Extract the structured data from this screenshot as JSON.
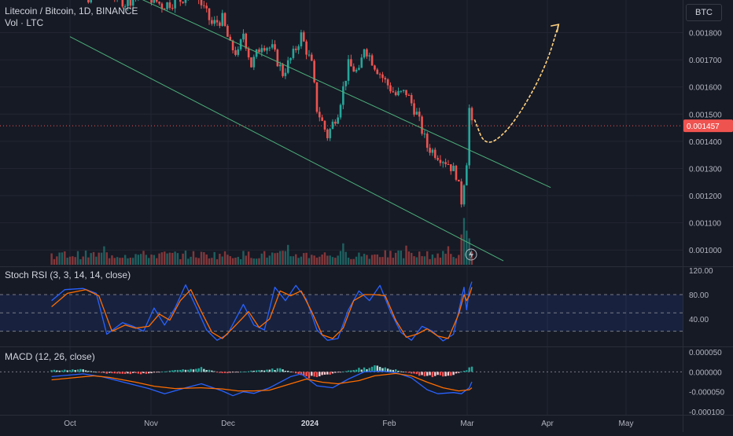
{
  "header": {
    "title": "Litecoin / Bitcoin, 1D, BINANCE",
    "volume_label": "Vol · LTC",
    "symbol_badge": "BTC"
  },
  "colors": {
    "background": "#161a25",
    "grid": "#232632",
    "up": "#26a69a",
    "down": "#ef5350",
    "channel": "#4caf7a",
    "stoch_k": "#2962ff",
    "stoch_d": "#ff6d00",
    "macd_line": "#2962ff",
    "signal_line": "#ff6d00",
    "arrow": "#ffd180"
  },
  "chart_data": [
    {
      "type": "candlestick",
      "title": "Litecoin / Bitcoin, 1D, BINANCE",
      "x_ticks": [
        "Oct",
        "Nov",
        "Dec",
        "2024",
        "Feb",
        "Mar",
        "Apr",
        "May"
      ],
      "y_ticks": [
        "0.001800",
        "0.001700",
        "0.001600",
        "0.001500",
        "0.001400",
        "0.001300",
        "0.001200",
        "0.001100",
        "0.001000"
      ],
      "ylim": [
        0.00094,
        0.00192
      ],
      "last_price_label": "0.001457",
      "last_price": 0.001457,
      "close_path": [
        {
          "x": "2023-09-29",
          "y": 0.00198
        },
        {
          "x": "2023-10-08",
          "y": 0.00193
        },
        {
          "x": "2023-10-15",
          "y": 0.00196
        },
        {
          "x": "2023-10-22",
          "y": 0.00191
        },
        {
          "x": "2023-10-29",
          "y": 0.00195
        },
        {
          "x": "2023-11-05",
          "y": 0.0019
        },
        {
          "x": "2023-11-12",
          "y": 0.00192
        },
        {
          "x": "2023-11-17",
          "y": 0.00196
        },
        {
          "x": "2023-11-24",
          "y": 0.00183
        },
        {
          "x": "2023-11-28",
          "y": 0.00185
        },
        {
          "x": "2023-12-01",
          "y": 0.00175
        },
        {
          "x": "2023-12-04",
          "y": 0.00172
        },
        {
          "x": "2023-12-06",
          "y": 0.0018
        },
        {
          "x": "2023-12-09",
          "y": 0.00168
        },
        {
          "x": "2023-12-13",
          "y": 0.00176
        },
        {
          "x": "2023-12-17",
          "y": 0.00174
        },
        {
          "x": "2023-12-21",
          "y": 0.00165
        },
        {
          "x": "2023-12-25",
          "y": 0.00172
        },
        {
          "x": "2023-12-28",
          "y": 0.00179
        },
        {
          "x": "2024-01-01",
          "y": 0.00168
        },
        {
          "x": "2024-01-03",
          "y": 0.00152
        },
        {
          "x": "2024-01-07",
          "y": 0.00142
        },
        {
          "x": "2024-01-11",
          "y": 0.00151
        },
        {
          "x": "2024-01-15",
          "y": 0.00168
        },
        {
          "x": "2024-01-19",
          "y": 0.00165
        },
        {
          "x": "2024-01-21",
          "y": 0.00175
        },
        {
          "x": "2024-01-25",
          "y": 0.00168
        },
        {
          "x": "2024-01-29",
          "y": 0.00162
        },
        {
          "x": "2024-02-02",
          "y": 0.00157
        },
        {
          "x": "2024-02-06",
          "y": 0.00158
        },
        {
          "x": "2024-02-10",
          "y": 0.0015
        },
        {
          "x": "2024-02-14",
          "y": 0.00138
        },
        {
          "x": "2024-02-18",
          "y": 0.00135
        },
        {
          "x": "2024-02-22",
          "y": 0.00132
        },
        {
          "x": "2024-02-25",
          "y": 0.00128
        },
        {
          "x": "2024-02-27",
          "y": 0.00118
        },
        {
          "x": "2024-02-29",
          "y": 0.00133
        },
        {
          "x": "2024-03-01",
          "y": 0.00152
        },
        {
          "x": "2024-03-02",
          "y": 0.001457
        }
      ],
      "channel_upper": [
        {
          "x": "2023-09-24",
          "y": 0.002075
        },
        {
          "x": "2024-04-01",
          "y": 0.00123
        }
      ],
      "channel_lower": [
        {
          "x": "2023-10-01",
          "y": 0.001785
        },
        {
          "x": "2024-03-14",
          "y": 0.00096
        }
      ],
      "projection_arrow": [
        {
          "x": "2024-03-03",
          "y": 0.00148
        },
        {
          "x": "2024-03-07",
          "y": 0.00138
        },
        {
          "x": "2024-03-15",
          "y": 0.00143
        },
        {
          "x": "2024-03-24",
          "y": 0.00156
        },
        {
          "x": "2024-03-31",
          "y": 0.0017
        },
        {
          "x": "2024-04-04",
          "y": 0.00183
        }
      ],
      "volume_spikes": [
        {
          "x": "2024-02-27",
          "value": 0.55
        },
        {
          "x": "2024-02-28",
          "value": 0.85
        },
        {
          "x": "2024-02-29",
          "value": 0.62
        },
        {
          "x": "2024-03-01",
          "value": 0.48
        }
      ]
    },
    {
      "type": "line",
      "title": "Stoch RSI (3, 3, 14, 14, close)",
      "y_ticks": [
        "120.00",
        "80.00",
        "40.00"
      ],
      "ylim": [
        -5,
        125
      ],
      "band": [
        20,
        80
      ],
      "midline": 50,
      "series": [
        {
          "values": [
            {
              "x": "2023-09-24",
              "y": 70
            },
            {
              "x": "2023-09-29",
              "y": 88
            },
            {
              "x": "2023-10-06",
              "y": 90
            },
            {
              "x": "2023-10-11",
              "y": 82
            },
            {
              "x": "2023-10-15",
              "y": 15
            },
            {
              "x": "2023-10-21",
              "y": 34
            },
            {
              "x": "2023-10-25",
              "y": 28
            },
            {
              "x": "2023-10-29",
              "y": 20
            },
            {
              "x": "2023-11-02",
              "y": 58
            },
            {
              "x": "2023-11-06",
              "y": 30
            },
            {
              "x": "2023-11-10",
              "y": 58
            },
            {
              "x": "2023-11-14",
              "y": 96
            },
            {
              "x": "2023-11-18",
              "y": 60
            },
            {
              "x": "2023-11-22",
              "y": 22
            },
            {
              "x": "2023-11-26",
              "y": 5
            },
            {
              "x": "2023-11-30",
              "y": 15
            },
            {
              "x": "2023-12-06",
              "y": 64
            },
            {
              "x": "2023-12-10",
              "y": 30
            },
            {
              "x": "2023-12-14",
              "y": 22
            },
            {
              "x": "2023-12-18",
              "y": 92
            },
            {
              "x": "2023-12-22",
              "y": 70
            },
            {
              "x": "2023-12-26",
              "y": 95
            },
            {
              "x": "2023-12-30",
              "y": 72
            },
            {
              "x": "2024-01-03",
              "y": 22
            },
            {
              "x": "2024-01-07",
              "y": 5
            },
            {
              "x": "2024-01-11",
              "y": 8
            },
            {
              "x": "2024-01-15",
              "y": 55
            },
            {
              "x": "2024-01-19",
              "y": 86
            },
            {
              "x": "2024-01-23",
              "y": 70
            },
            {
              "x": "2024-01-27",
              "y": 95
            },
            {
              "x": "2024-01-31",
              "y": 52
            },
            {
              "x": "2024-02-04",
              "y": 18
            },
            {
              "x": "2024-02-08",
              "y": 5
            },
            {
              "x": "2024-02-12",
              "y": 28
            },
            {
              "x": "2024-02-16",
              "y": 20
            },
            {
              "x": "2024-02-20",
              "y": 4
            },
            {
              "x": "2024-02-24",
              "y": 15
            },
            {
              "x": "2024-02-28",
              "y": 92
            },
            {
              "x": "2024-02-29",
              "y": 55
            },
            {
              "x": "2024-03-01",
              "y": 88
            },
            {
              "x": "2024-03-02",
              "y": 101
            }
          ]
        },
        {
          "values": [
            {
              "x": "2023-09-24",
              "y": 60
            },
            {
              "x": "2023-09-30",
              "y": 82
            },
            {
              "x": "2023-10-07",
              "y": 88
            },
            {
              "x": "2023-10-12",
              "y": 78
            },
            {
              "x": "2023-10-17",
              "y": 20
            },
            {
              "x": "2023-10-22",
              "y": 30
            },
            {
              "x": "2023-10-26",
              "y": 25
            },
            {
              "x": "2023-10-31",
              "y": 28
            },
            {
              "x": "2023-11-04",
              "y": 48
            },
            {
              "x": "2023-11-08",
              "y": 38
            },
            {
              "x": "2023-11-12",
              "y": 70
            },
            {
              "x": "2023-11-16",
              "y": 88
            },
            {
              "x": "2023-11-20",
              "y": 52
            },
            {
              "x": "2023-11-24",
              "y": 18
            },
            {
              "x": "2023-11-28",
              "y": 8
            },
            {
              "x": "2023-12-02",
              "y": 25
            },
            {
              "x": "2023-12-08",
              "y": 52
            },
            {
              "x": "2023-12-12",
              "y": 26
            },
            {
              "x": "2023-12-16",
              "y": 40
            },
            {
              "x": "2023-12-20",
              "y": 86
            },
            {
              "x": "2023-12-24",
              "y": 78
            },
            {
              "x": "2023-12-28",
              "y": 86
            },
            {
              "x": "2024-01-01",
              "y": 52
            },
            {
              "x": "2024-01-05",
              "y": 14
            },
            {
              "x": "2024-01-09",
              "y": 8
            },
            {
              "x": "2024-01-13",
              "y": 25
            },
            {
              "x": "2024-01-17",
              "y": 70
            },
            {
              "x": "2024-01-21",
              "y": 80
            },
            {
              "x": "2024-01-25",
              "y": 80
            },
            {
              "x": "2024-01-29",
              "y": 78
            },
            {
              "x": "2024-02-02",
              "y": 38
            },
            {
              "x": "2024-02-06",
              "y": 10
            },
            {
              "x": "2024-02-10",
              "y": 15
            },
            {
              "x": "2024-02-14",
              "y": 24
            },
            {
              "x": "2024-02-18",
              "y": 12
            },
            {
              "x": "2024-02-22",
              "y": 8
            },
            {
              "x": "2024-02-26",
              "y": 48
            },
            {
              "x": "2024-02-28",
              "y": 80
            },
            {
              "x": "2024-02-29",
              "y": 70
            },
            {
              "x": "2024-03-01",
              "y": 78
            },
            {
              "x": "2024-03-02",
              "y": 92
            }
          ]
        }
      ]
    },
    {
      "type": "bar",
      "title": "MACD (12, 26, close)",
      "y_ticks": [
        "0.000050",
        "0.000000",
        "-0.000050",
        "-0.000100"
      ],
      "ylim": [
        -0.000108,
        6.2e-05
      ],
      "histogram_profile": [
        {
          "x": "2023-09-24",
          "y": 4e-06
        },
        {
          "x": "2023-10-05",
          "y": 6e-06
        },
        {
          "x": "2023-10-15",
          "y": -4e-06
        },
        {
          "x": "2023-10-29",
          "y": -5e-06
        },
        {
          "x": "2023-11-10",
          "y": 4e-06
        },
        {
          "x": "2023-11-20",
          "y": 1e-05
        },
        {
          "x": "2023-11-28",
          "y": -4e-06
        },
        {
          "x": "2023-12-10",
          "y": 3e-06
        },
        {
          "x": "2023-12-20",
          "y": 8e-06
        },
        {
          "x": "2024-01-01",
          "y": -1.5e-05
        },
        {
          "x": "2024-01-09",
          "y": -5e-06
        },
        {
          "x": "2024-01-19",
          "y": 8e-06
        },
        {
          "x": "2024-01-27",
          "y": 1.5e-05
        },
        {
          "x": "2024-02-04",
          "y": 2e-06
        },
        {
          "x": "2024-02-14",
          "y": -1.2e-05
        },
        {
          "x": "2024-02-24",
          "y": -8e-06
        },
        {
          "x": "2024-02-29",
          "y": 6e-06
        },
        {
          "x": "2024-03-02",
          "y": 1.4e-05
        }
      ],
      "series": [
        {
          "values": [
            {
              "x": "2023-09-24",
              "y": -1.2e-05
            },
            {
              "x": "2023-10-06",
              "y": -5e-06
            },
            {
              "x": "2023-10-13",
              "y": -1.2e-05
            },
            {
              "x": "2023-10-19",
              "y": -2.2e-05
            },
            {
              "x": "2023-10-31",
              "y": -4.2e-05
            },
            {
              "x": "2023-11-06",
              "y": -5.5e-05
            },
            {
              "x": "2023-11-14",
              "y": -4e-05
            },
            {
              "x": "2023-11-20",
              "y": -3e-05
            },
            {
              "x": "2023-11-28",
              "y": -4.8e-05
            },
            {
              "x": "2023-12-02",
              "y": -6e-05
            },
            {
              "x": "2023-12-06",
              "y": -5e-05
            },
            {
              "x": "2023-12-10",
              "y": -5.4e-05
            },
            {
              "x": "2023-12-16",
              "y": -4e-05
            },
            {
              "x": "2023-12-24",
              "y": -1.2e-05
            },
            {
              "x": "2023-12-28",
              "y": -5e-06
            },
            {
              "x": "2024-01-03",
              "y": -3.5e-05
            },
            {
              "x": "2024-01-09",
              "y": -4e-05
            },
            {
              "x": "2024-01-15",
              "y": -1.8e-05
            },
            {
              "x": "2024-01-21",
              "y": 0.0
            },
            {
              "x": "2024-01-27",
              "y": 2e-06
            },
            {
              "x": "2024-02-02",
              "y": -2e-06
            },
            {
              "x": "2024-02-08",
              "y": -1.5e-05
            },
            {
              "x": "2024-02-14",
              "y": -4.5e-05
            },
            {
              "x": "2024-02-18",
              "y": -5.5e-05
            },
            {
              "x": "2024-02-24",
              "y": -5.2e-05
            },
            {
              "x": "2024-02-27",
              "y": -5.5e-05
            },
            {
              "x": "2024-03-01",
              "y": -4e-05
            },
            {
              "x": "2024-03-02",
              "y": -2.5e-05
            }
          ]
        },
        {
          "values": [
            {
              "x": "2023-09-24",
              "y": -2e-05
            },
            {
              "x": "2023-10-10",
              "y": -1e-05
            },
            {
              "x": "2023-10-16",
              "y": -1.4e-05
            },
            {
              "x": "2023-10-26",
              "y": -2.6e-05
            },
            {
              "x": "2023-11-02",
              "y": -3.6e-05
            },
            {
              "x": "2023-11-10",
              "y": -4.2e-05
            },
            {
              "x": "2023-11-20",
              "y": -4e-05
            },
            {
              "x": "2023-11-28",
              "y": -4.3e-05
            },
            {
              "x": "2023-12-04",
              "y": -4.8e-05
            },
            {
              "x": "2023-12-10",
              "y": -4.8e-05
            },
            {
              "x": "2023-12-16",
              "y": -4.6e-05
            },
            {
              "x": "2023-12-24",
              "y": -3e-05
            },
            {
              "x": "2023-12-30",
              "y": -1.8e-05
            },
            {
              "x": "2024-01-05",
              "y": -2.6e-05
            },
            {
              "x": "2024-01-11",
              "y": -3e-05
            },
            {
              "x": "2024-01-19",
              "y": -2.2e-05
            },
            {
              "x": "2024-01-25",
              "y": -1e-05
            },
            {
              "x": "2024-02-02",
              "y": -4e-06
            },
            {
              "x": "2024-02-08",
              "y": -1e-05
            },
            {
              "x": "2024-02-14",
              "y": -2.6e-05
            },
            {
              "x": "2024-02-20",
              "y": -4e-05
            },
            {
              "x": "2024-02-26",
              "y": -4.8e-05
            },
            {
              "x": "2024-03-01",
              "y": -4.5e-05
            },
            {
              "x": "2024-03-02",
              "y": -4e-05
            }
          ]
        }
      ]
    }
  ],
  "indicators": {
    "stoch_title": "Stoch RSI (3, 3, 14, 14, close)",
    "macd_title": "MACD (12, 26, close)"
  }
}
